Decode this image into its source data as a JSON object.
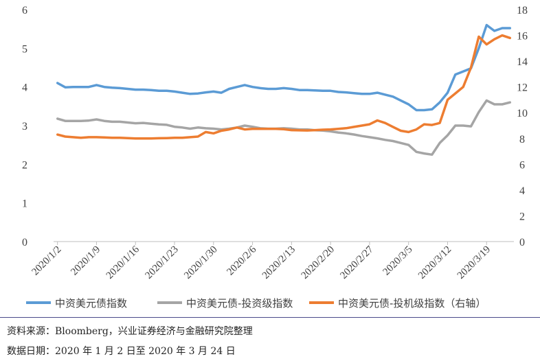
{
  "chart_data": {
    "type": "line",
    "x": [
      "2020/1/2",
      "2020/1/3",
      "2020/1/6",
      "2020/1/7",
      "2020/1/8",
      "2020/1/9",
      "2020/1/10",
      "2020/1/13",
      "2020/1/14",
      "2020/1/15",
      "2020/1/16",
      "2020/1/17",
      "2020/1/20",
      "2020/1/21",
      "2020/1/22",
      "2020/1/23",
      "2020/1/24",
      "2020/1/27",
      "2020/1/28",
      "2020/1/29",
      "2020/1/30",
      "2020/1/31",
      "2020/2/3",
      "2020/2/4",
      "2020/2/5",
      "2020/2/6",
      "2020/2/7",
      "2020/2/10",
      "2020/2/11",
      "2020/2/12",
      "2020/2/13",
      "2020/2/14",
      "2020/2/17",
      "2020/2/18",
      "2020/2/19",
      "2020/2/20",
      "2020/2/21",
      "2020/2/24",
      "2020/2/25",
      "2020/2/26",
      "2020/2/27",
      "2020/2/28",
      "2020/3/2",
      "2020/3/3",
      "2020/3/4",
      "2020/3/5",
      "2020/3/6",
      "2020/3/9",
      "2020/3/10",
      "2020/3/11",
      "2020/3/12",
      "2020/3/13",
      "2020/3/16",
      "2020/3/17",
      "2020/3/18",
      "2020/3/19",
      "2020/3/20",
      "2020/3/23",
      "2020/3/24"
    ],
    "xtick_labels": [
      "2020/1/2",
      "2020/1/9",
      "2020/1/16",
      "2020/1/23",
      "2020/1/30",
      "2020/2/6",
      "2020/2/13",
      "2020/2/20",
      "2020/2/27",
      "2020/3/5",
      "2020/3/12",
      "2020/3/19"
    ],
    "y_left": {
      "ticks": [
        "0",
        "1",
        "2",
        "3",
        "4",
        "5",
        "6"
      ],
      "ylim": [
        0,
        6
      ]
    },
    "y_right": {
      "ticks": [
        "0",
        "2",
        "4",
        "6",
        "8",
        "10",
        "12",
        "14",
        "16",
        "18"
      ],
      "ylim": [
        0,
        18
      ]
    },
    "series": [
      {
        "name": "中资美元债指数",
        "axis": "left",
        "color": "#5b9bd5",
        "values": [
          4.1,
          3.99,
          4.0,
          4.0,
          4.0,
          4.05,
          4.0,
          3.98,
          3.97,
          3.95,
          3.93,
          3.93,
          3.92,
          3.9,
          3.9,
          3.88,
          3.85,
          3.82,
          3.83,
          3.86,
          3.88,
          3.85,
          3.95,
          4.0,
          4.05,
          4.0,
          3.97,
          3.95,
          3.95,
          3.97,
          3.95,
          3.92,
          3.92,
          3.91,
          3.9,
          3.9,
          3.87,
          3.86,
          3.84,
          3.82,
          3.82,
          3.85,
          3.8,
          3.75,
          3.65,
          3.55,
          3.4,
          3.4,
          3.42,
          3.6,
          3.85,
          4.32,
          4.4,
          4.48,
          5.0,
          5.6,
          5.45,
          5.52,
          5.52
        ]
      },
      {
        "name": "中资美元债-投资级指数",
        "axis": "left",
        "color": "#a5a5a5",
        "values": [
          3.18,
          3.12,
          3.12,
          3.12,
          3.13,
          3.16,
          3.12,
          3.1,
          3.1,
          3.08,
          3.06,
          3.07,
          3.05,
          3.03,
          3.02,
          2.97,
          2.95,
          2.92,
          2.95,
          2.93,
          2.92,
          2.9,
          2.92,
          2.95,
          3.0,
          2.97,
          2.93,
          2.92,
          2.92,
          2.93,
          2.92,
          2.9,
          2.9,
          2.88,
          2.87,
          2.85,
          2.82,
          2.8,
          2.77,
          2.73,
          2.7,
          2.67,
          2.63,
          2.6,
          2.55,
          2.5,
          2.32,
          2.28,
          2.25,
          2.55,
          2.75,
          3.0,
          3.0,
          2.98,
          3.35,
          3.65,
          3.55,
          3.55,
          3.6
        ]
      },
      {
        "name": "中资美元债-投机级指数（右轴）",
        "axis": "right",
        "color": "#ed7d31",
        "values": [
          8.3,
          8.15,
          8.1,
          8.05,
          8.1,
          8.1,
          8.08,
          8.05,
          8.05,
          8.03,
          8.0,
          8.0,
          8.0,
          8.02,
          8.03,
          8.05,
          8.05,
          8.1,
          8.15,
          8.5,
          8.4,
          8.6,
          8.7,
          8.85,
          8.7,
          8.75,
          8.75,
          8.75,
          8.75,
          8.72,
          8.65,
          8.63,
          8.62,
          8.65,
          8.68,
          8.7,
          8.75,
          8.8,
          8.9,
          9.0,
          9.1,
          9.4,
          9.2,
          8.9,
          8.6,
          8.5,
          8.7,
          9.1,
          9.05,
          9.2,
          11.0,
          11.5,
          12.0,
          13.5,
          15.9,
          15.3,
          15.7,
          16.0,
          15.8
        ]
      }
    ],
    "legend": {
      "position": "bottom",
      "items": [
        "中资美元债指数",
        "中资美元债-投资级指数",
        "中资美元债-投机级指数（右轴）"
      ]
    }
  },
  "source": {
    "line1": "资料来源：Bloomberg，兴业证券经济与金融研究院整理",
    "line2": "数据日期：2020 年 1 月 2 日至 2020 年 3 月 24 日"
  }
}
